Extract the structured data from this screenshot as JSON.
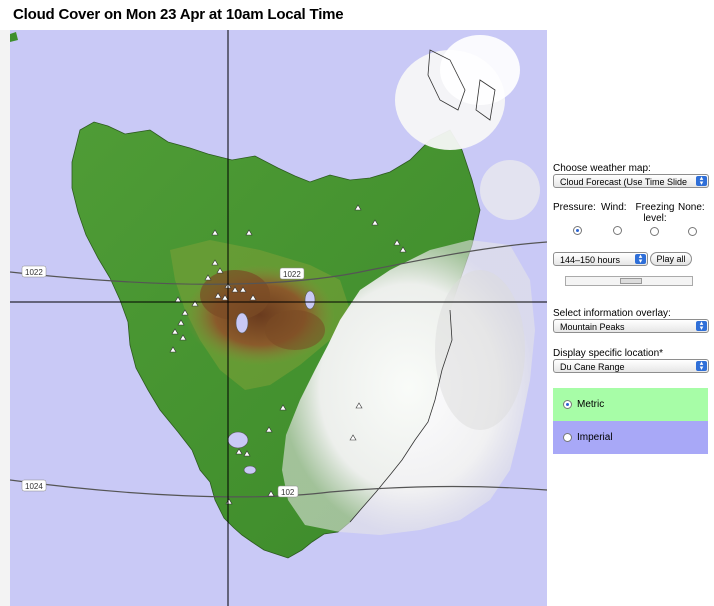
{
  "title": "Cloud Cover on Mon 23 Apr at 10am Local Time",
  "map": {
    "isobars": [
      {
        "label": "1022"
      },
      {
        "label": "1022"
      },
      {
        "label": "1024"
      },
      {
        "label": "102"
      }
    ],
    "colors": {
      "ocean": "#c9c9f6",
      "lowland": "#3f8f2d",
      "midland": "#7aa037",
      "highland": "#7a4b25",
      "cloud": "#ffffff"
    }
  },
  "panel": {
    "choose_map_label": "Choose weather map:",
    "choose_map_value": "Cloud Forecast (Use Time Slide",
    "layer_labels": {
      "pressure": "Pressure:",
      "wind": "Wind:",
      "freezing": "Freezing level:",
      "none": "None:"
    },
    "time_range_value": "144–150 hours",
    "play_label": "Play all",
    "overlay_label": "Select information overlay:",
    "overlay_value": "Mountain Peaks",
    "location_label": "Display specific location*",
    "location_value": "Du Cane Range",
    "metric_label": "Metric",
    "imperial_label": "Imperial",
    "metric_color": "#a7fda7",
    "imperial_color": "#a8a8f7"
  }
}
